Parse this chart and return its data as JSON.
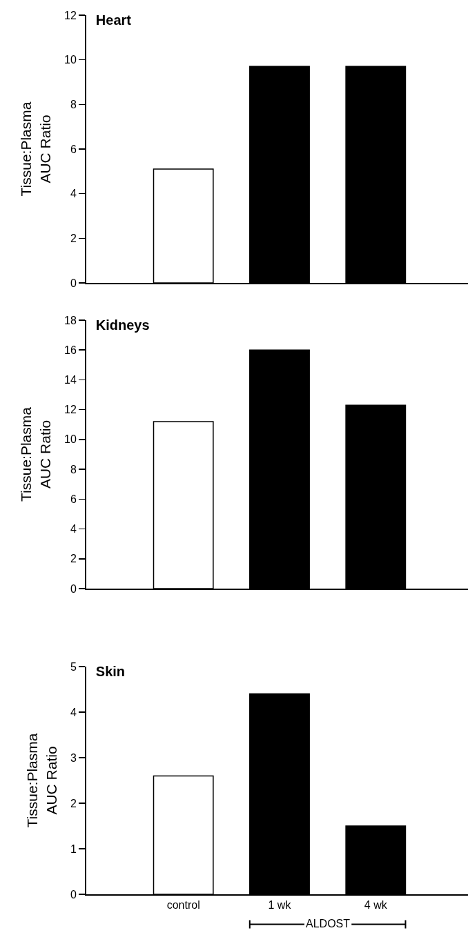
{
  "chart_data": [
    {
      "type": "bar",
      "title": "Heart",
      "ylabel": "Tissue:Plasma\nAUC Ratio",
      "categories": [
        null,
        null,
        null
      ],
      "values": [
        5.1,
        9.7,
        9.7
      ],
      "colors": [
        "#ffffff",
        "#000000",
        "#000000"
      ],
      "ylim": [
        0,
        12
      ],
      "yticks": [
        0,
        2,
        4,
        6,
        8,
        10,
        12
      ],
      "grid": false,
      "tick_labels": "y"
    },
    {
      "type": "bar",
      "title": "Kidneys",
      "ylabel": "Tissue:Plasma\nAUC Ratio",
      "categories": [
        null,
        null,
        null
      ],
      "values": [
        11.2,
        16.0,
        12.3
      ],
      "colors": [
        "#ffffff",
        "#000000",
        "#000000"
      ],
      "ylim": [
        0,
        18
      ],
      "yticks": [
        0,
        2,
        4,
        6,
        8,
        10,
        12,
        14,
        16,
        18
      ],
      "grid": false,
      "tick_labels": "y"
    },
    {
      "type": "bar",
      "title": "Skin",
      "ylabel": "Tissue:Plasma\nAUC Ratio",
      "categories": [
        "control",
        "1 wk",
        "4 wk"
      ],
      "values": [
        2.6,
        4.4,
        1.5
      ],
      "colors": [
        "#ffffff",
        "#000000",
        "#000000"
      ],
      "ylim": [
        0,
        5
      ],
      "yticks": [
        0,
        1,
        2,
        3,
        4,
        5
      ],
      "grid": false,
      "annotations": [
        "ALDOST"
      ]
    }
  ]
}
